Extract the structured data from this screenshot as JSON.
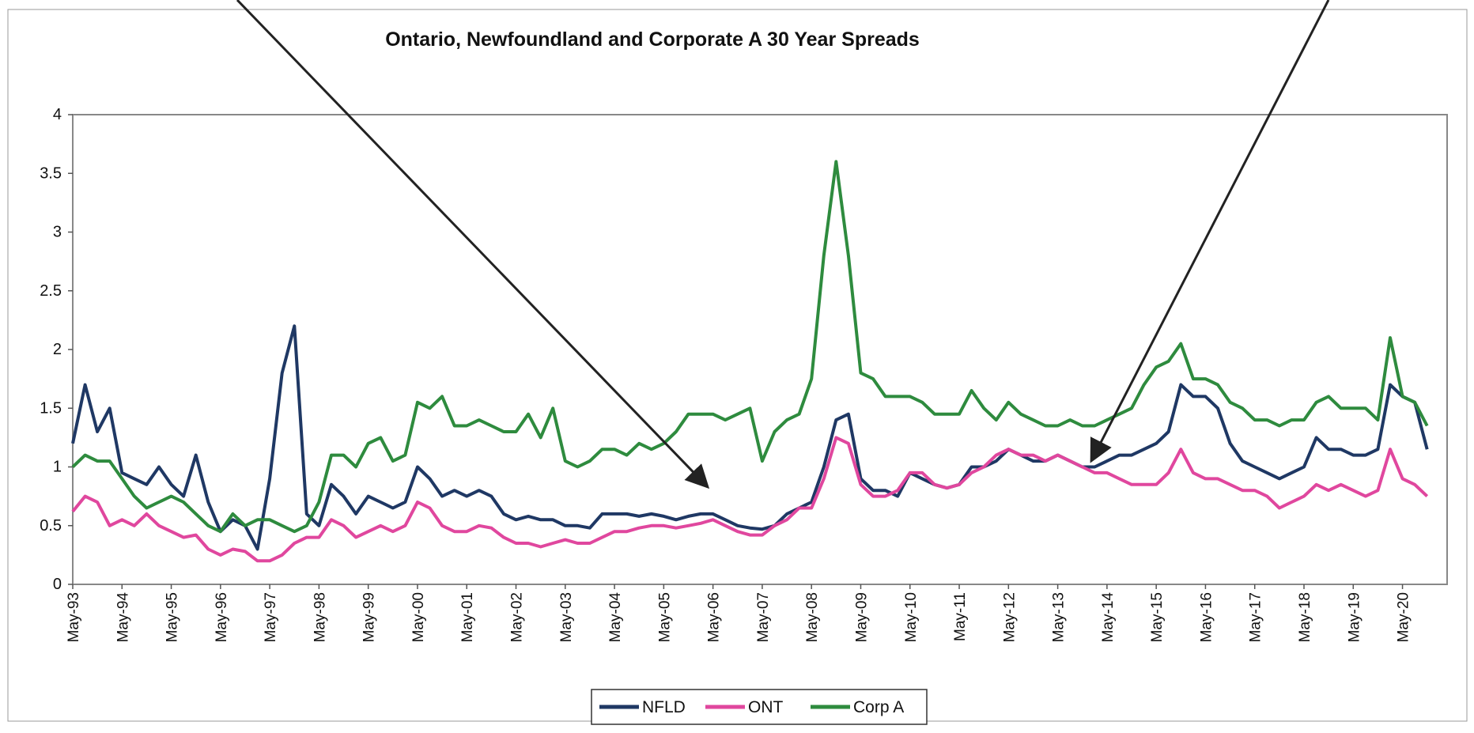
{
  "chart_data": {
    "type": "line",
    "title": "Ontario, Newfoundland and Corporate A 30 Year Spreads",
    "categories": [
      "May-93",
      null,
      null,
      null,
      "May-94",
      null,
      null,
      null,
      "May-95",
      null,
      null,
      null,
      "May-96",
      null,
      null,
      null,
      "May-97",
      null,
      null,
      null,
      "May-98",
      null,
      null,
      null,
      "May-99",
      null,
      null,
      null,
      "May-00",
      null,
      null,
      null,
      "May-01",
      null,
      null,
      null,
      "May-02",
      null,
      null,
      null,
      "May-03",
      null,
      null,
      null,
      "May-04",
      null,
      null,
      null,
      "May-05",
      null,
      null,
      null,
      "May-06",
      null,
      null,
      null,
      "May-07",
      null,
      null,
      null,
      "May-08",
      null,
      null,
      null,
      "May-09",
      null,
      null,
      null,
      "May-10",
      null,
      null,
      null,
      "May-11",
      null,
      null,
      null,
      "May-12",
      null,
      null,
      null,
      "May-13",
      null,
      null,
      null,
      "May-14",
      null,
      null,
      null,
      "May-15",
      null,
      null,
      null,
      "May-16",
      null,
      null,
      null,
      "May-17",
      null,
      null,
      null,
      "May-18",
      null,
      null,
      null,
      "May-19",
      null,
      null,
      null,
      "May-20",
      null,
      null
    ],
    "series": [
      {
        "name": "NFLD",
        "color": "#1f3864",
        "values": [
          1.2,
          1.7,
          1.3,
          1.5,
          0.95,
          0.9,
          0.85,
          1.0,
          0.85,
          0.75,
          1.1,
          0.7,
          0.45,
          0.55,
          0.5,
          0.3,
          0.9,
          1.8,
          2.2,
          0.6,
          0.5,
          0.85,
          0.75,
          0.6,
          0.75,
          0.7,
          0.65,
          0.7,
          1.0,
          0.9,
          0.75,
          0.8,
          0.75,
          0.8,
          0.75,
          0.6,
          0.55,
          0.58,
          0.55,
          0.55,
          0.5,
          0.5,
          0.48,
          0.6,
          0.6,
          0.6,
          0.58,
          0.6,
          0.58,
          0.55,
          0.58,
          0.6,
          0.6,
          0.55,
          0.5,
          0.48,
          0.47,
          0.5,
          0.6,
          0.65,
          0.7,
          1.0,
          1.4,
          1.45,
          0.9,
          0.8,
          0.8,
          0.75,
          0.95,
          0.9,
          0.85,
          0.82,
          0.85,
          1.0,
          1.0,
          1.05,
          1.15,
          1.1,
          1.05,
          1.05,
          1.1,
          1.05,
          1.0,
          1.0,
          1.05,
          1.1,
          1.1,
          1.15,
          1.2,
          1.3,
          1.7,
          1.6,
          1.6,
          1.5,
          1.2,
          1.05,
          1.0,
          0.95,
          0.9,
          0.95,
          1.0,
          1.25,
          1.15,
          1.15,
          1.1,
          1.1,
          1.15,
          1.7,
          1.6,
          1.55,
          1.15
        ]
      },
      {
        "name": "ONT",
        "color": "#e0479e",
        "values": [
          0.62,
          0.75,
          0.7,
          0.5,
          0.55,
          0.5,
          0.6,
          0.5,
          0.45,
          0.4,
          0.42,
          0.3,
          0.25,
          0.3,
          0.28,
          0.2,
          0.2,
          0.25,
          0.35,
          0.4,
          0.4,
          0.55,
          0.5,
          0.4,
          0.45,
          0.5,
          0.45,
          0.5,
          0.7,
          0.65,
          0.5,
          0.45,
          0.45,
          0.5,
          0.48,
          0.4,
          0.35,
          0.35,
          0.32,
          0.35,
          0.38,
          0.35,
          0.35,
          0.4,
          0.45,
          0.45,
          0.48,
          0.5,
          0.5,
          0.48,
          0.5,
          0.52,
          0.55,
          0.5,
          0.45,
          0.42,
          0.42,
          0.5,
          0.55,
          0.65,
          0.65,
          0.9,
          1.25,
          1.2,
          0.85,
          0.75,
          0.75,
          0.8,
          0.95,
          0.95,
          0.85,
          0.82,
          0.85,
          0.95,
          1.0,
          1.1,
          1.15,
          1.1,
          1.1,
          1.05,
          1.1,
          1.05,
          1.0,
          0.95,
          0.95,
          0.9,
          0.85,
          0.85,
          0.85,
          0.95,
          1.15,
          0.95,
          0.9,
          0.9,
          0.85,
          0.8,
          0.8,
          0.75,
          0.65,
          0.7,
          0.75,
          0.85,
          0.8,
          0.85,
          0.8,
          0.75,
          0.8,
          1.15,
          0.9,
          0.85,
          0.75
        ]
      },
      {
        "name": "Corp A",
        "color": "#2e8b3e",
        "values": [
          1.0,
          1.1,
          1.05,
          1.05,
          0.9,
          0.75,
          0.65,
          0.7,
          0.75,
          0.7,
          0.6,
          0.5,
          0.45,
          0.6,
          0.5,
          0.55,
          0.55,
          0.5,
          0.45,
          0.5,
          0.7,
          1.1,
          1.1,
          1.0,
          1.2,
          1.25,
          1.05,
          1.1,
          1.55,
          1.5,
          1.6,
          1.35,
          1.35,
          1.4,
          1.35,
          1.3,
          1.3,
          1.45,
          1.25,
          1.5,
          1.05,
          1.0,
          1.05,
          1.15,
          1.15,
          1.1,
          1.2,
          1.15,
          1.2,
          1.3,
          1.45,
          1.45,
          1.45,
          1.4,
          1.45,
          1.5,
          1.05,
          1.3,
          1.4,
          1.45,
          1.75,
          2.8,
          3.6,
          2.8,
          1.8,
          1.75,
          1.6,
          1.6,
          1.6,
          1.55,
          1.45,
          1.45,
          1.45,
          1.65,
          1.5,
          1.4,
          1.55,
          1.45,
          1.4,
          1.35,
          1.35,
          1.4,
          1.35,
          1.35,
          1.4,
          1.45,
          1.5,
          1.7,
          1.85,
          1.9,
          2.05,
          1.75,
          1.75,
          1.7,
          1.55,
          1.5,
          1.4,
          1.4,
          1.35,
          1.4,
          1.4,
          1.55,
          1.6,
          1.5,
          1.5,
          1.5,
          1.4,
          2.1,
          1.6,
          1.55,
          1.35
        ]
      }
    ],
    "ylim": [
      0,
      4
    ],
    "yticks": [
      0,
      0.5,
      1,
      1.5,
      2,
      2.5,
      3,
      3.5,
      4
    ],
    "legend": "bottom"
  }
}
